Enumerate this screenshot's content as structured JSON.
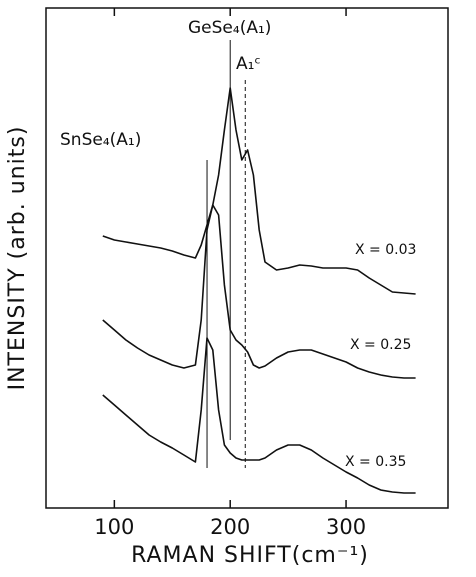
{
  "chart_data": {
    "type": "line",
    "xlabel": "RAMAN SHIFT(cm⁻¹)",
    "ylabel": "INTENSITY (arb. units)",
    "xlim": [
      41,
      388
    ],
    "xticks": [
      100,
      200,
      300
    ],
    "ylim": [
      0,
      100
    ],
    "x": [
      90,
      100,
      110,
      120,
      130,
      140,
      150,
      160,
      170,
      175,
      180,
      185,
      190,
      195,
      200,
      205,
      210,
      215,
      220,
      225,
      230,
      240,
      250,
      260,
      270,
      280,
      290,
      300,
      310,
      320,
      330,
      340,
      350,
      360
    ],
    "series": [
      {
        "name": "X = 0.03",
        "color": "#111111",
        "values": [
          54.4,
          53.6,
          53.2,
          52.8,
          52.4,
          52,
          51.4,
          50.6,
          50,
          52.6,
          56.6,
          60.6,
          66.6,
          75.6,
          84,
          75.6,
          69.6,
          71.6,
          66.6,
          55.6,
          49.2,
          47.6,
          48,
          48.6,
          48.4,
          48,
          48,
          48,
          47.6,
          46,
          44.6,
          43.2,
          43,
          42.8
        ]
      },
      {
        "name": "X = 0.25",
        "color": "#111111",
        "values": [
          37.6,
          35.6,
          33.6,
          32,
          30.6,
          29.6,
          28.6,
          28,
          28.6,
          37.6,
          55.6,
          60.6,
          58.6,
          44.6,
          35.6,
          33.6,
          32.6,
          31.2,
          28.6,
          28,
          28.4,
          30,
          31.2,
          31.6,
          31.6,
          30.8,
          30,
          29.2,
          28,
          27.2,
          26.6,
          26.2,
          26,
          26
        ]
      },
      {
        "name": "X = 0.35",
        "color": "#111111",
        "values": [
          22.6,
          20.6,
          18.6,
          16.6,
          14.6,
          13.2,
          12,
          10.6,
          9.2,
          19.6,
          34,
          31.6,
          19.6,
          12.6,
          11,
          10,
          9.6,
          9.6,
          9.6,
          9.6,
          10,
          11.6,
          12.6,
          12.6,
          11.6,
          10,
          8.6,
          7.2,
          6,
          4.6,
          3.6,
          3.2,
          3,
          3
        ]
      }
    ],
    "peaks": [
      {
        "label": "SnSe₄(A₁)",
        "x": 180
      },
      {
        "label": "GeSe₄(A₁)",
        "x": 200
      },
      {
        "label": "A₁ᶜ",
        "x": 213,
        "dashed": true
      }
    ]
  }
}
